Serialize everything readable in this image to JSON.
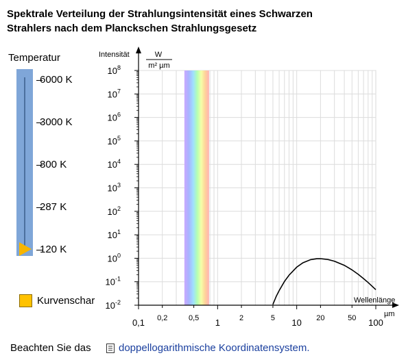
{
  "title_line1": "Spektrale Verteilung der Strahlungsintensität eines Schwarzen",
  "title_line2": "Strahlers nach dem Planckschen Strahlungsgesetz",
  "temperature_label": "Temperatur",
  "temperature_options": [
    "6000 K",
    "3000 K",
    "800 K",
    "287 K",
    "120 K"
  ],
  "selected_temperature": "120 K",
  "checkbox_label": "Kurvenschar",
  "footer_text": "Beachten Sie das",
  "footer_link": "doppellogarithmische Koordinatensystem.",
  "colors": {
    "slider": "#7fa6d8",
    "thumb": "#f7b500",
    "link": "#1a3f9e",
    "curve": "#000000"
  },
  "chart_data": {
    "type": "line",
    "x_scale": "log",
    "y_scale": "log",
    "xlim": [
      0.1,
      100
    ],
    "ylim": [
      0.01,
      100000000
    ],
    "ylabel": "Intensität",
    "yunit_numerator": "W",
    "yunit_denominator": "m² µm",
    "xlabel": "Wellenlänge",
    "xunit": "µm",
    "x_ticks": [
      0.1,
      0.2,
      0.5,
      1,
      2,
      5,
      10,
      20,
      50,
      100
    ],
    "x_tick_labels": [
      "0,1",
      "0,2",
      "0,5",
      "1",
      "2",
      "5",
      "10",
      "20",
      "50",
      "100"
    ],
    "y_tick_labels": [
      "10^8",
      "10^7",
      "10^6",
      "10^5",
      "10^4",
      "10^3",
      "10^2",
      "10^1",
      "10^0",
      "10^-1",
      "10^-2"
    ],
    "grid": true,
    "visible_spectrum_um": [
      0.38,
      0.78
    ],
    "series": [
      {
        "x": [
          5,
          5.5,
          6,
          7,
          8,
          10,
          12,
          15,
          18,
          20,
          25,
          30,
          40,
          50,
          60,
          70,
          80,
          100
        ],
        "y": [
          0.0107,
          0.0234,
          0.0422,
          0.1026,
          0.191,
          0.419,
          0.64,
          0.873,
          0.953,
          0.96,
          0.878,
          0.749,
          0.5,
          0.319,
          0.206,
          0.136,
          0.093,
          0.046
        ]
      }
    ]
  }
}
